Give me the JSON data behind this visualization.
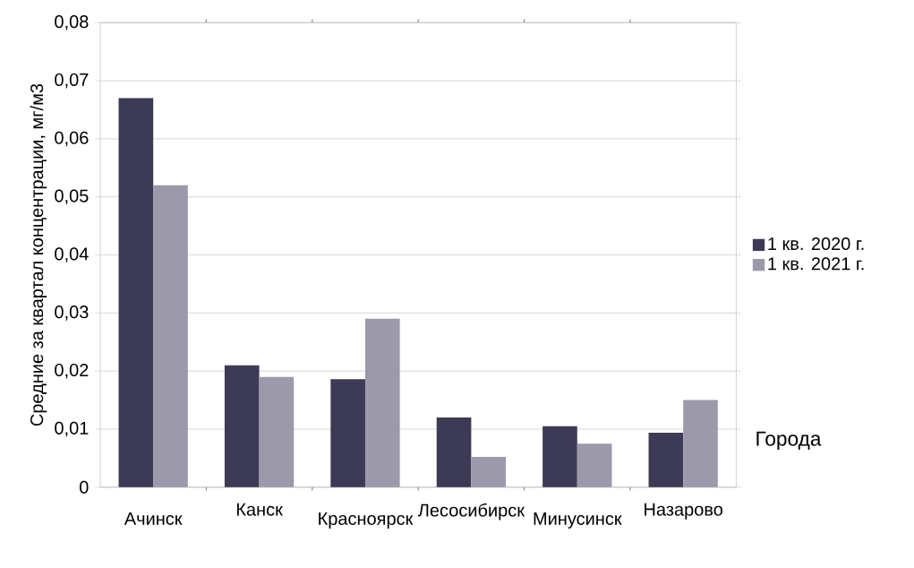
{
  "chart_data": {
    "type": "bar",
    "xlabel": "Города",
    "ylabel": "Средние за квартал концентрации, мг/м3",
    "categories": [
      "Ачинск",
      "Канск",
      "Красноярск",
      "Лесосибирск",
      "Минусинск",
      "Назарово"
    ],
    "series": [
      {
        "name": "1 кв. 2020 г.",
        "color": "#3d3a56",
        "values": [
          0.067,
          0.021,
          0.0186,
          0.012,
          0.0105,
          0.0094
        ]
      },
      {
        "name": "1 кв. 2021 г.",
        "color": "#9b99aa",
        "values": [
          0.052,
          0.019,
          0.029,
          0.0052,
          0.0075,
          0.015
        ]
      }
    ],
    "ylim": [
      0,
      0.08
    ],
    "yticks": [
      {
        "value": 0,
        "label": "0"
      },
      {
        "value": 0.01,
        "label": "0,01"
      },
      {
        "value": 0.02,
        "label": "0,02"
      },
      {
        "value": 0.03,
        "label": "0,03"
      },
      {
        "value": 0.04,
        "label": "0,04"
      },
      {
        "value": 0.05,
        "label": "0,05"
      },
      {
        "value": 0.06,
        "label": "0,06"
      },
      {
        "value": 0.07,
        "label": "0,07"
      },
      {
        "value": 0.08,
        "label": "0,08"
      }
    ],
    "grid": "y",
    "legend": "right"
  }
}
